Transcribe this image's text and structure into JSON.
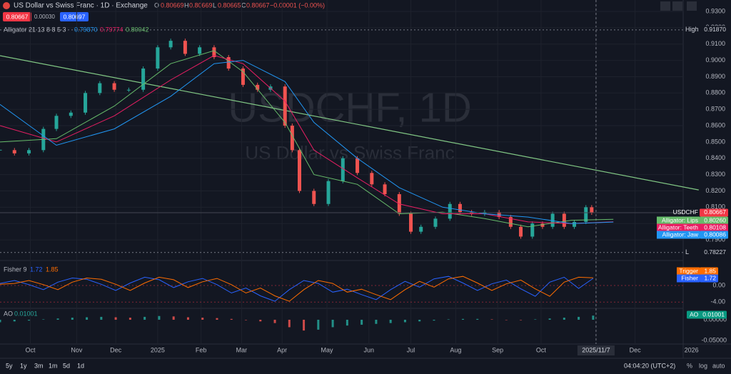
{
  "header": {
    "symbol": "US Dollar vs Swiss Franc · 1D · Exchange",
    "o_label": "O",
    "o": "0.80669",
    "h_label": "H",
    "h": "0.80669",
    "l_label": "L",
    "l": "0.80665",
    "c_label": "C",
    "c": "0.80667",
    "change": "−0.00001 (−0.00%)",
    "sell": "0.80667",
    "spread": "0.00030",
    "buy": "0.80697"
  },
  "watermark": {
    "title": "USDCHF, 1D",
    "subtitle": "US Dollar vs Swiss Franc"
  },
  "chart_data": [
    {
      "type": "candlestick",
      "name": "USDCHF",
      "price_label": "0.80667",
      "high_label": "High",
      "high": "0.91870",
      "low_label": "L",
      "low": "0.78227",
      "x": [
        0,
        10,
        20,
        30,
        39,
        49,
        59,
        69,
        79,
        89,
        99,
        109,
        118,
        128,
        138,
        148,
        158,
        168,
        178,
        187,
        197,
        202,
        207,
        217,
        227,
        237,
        247,
        257,
        266,
        276,
        284,
        291,
        301,
        311,
        318,
        326,
        335,
        345,
        353,
        360,
        368,
        375,
        382,
        390,
        397,
        405,
        409
      ],
      "values": [
        0.845,
        0.843,
        0.845,
        0.858,
        0.866,
        0.868,
        0.88,
        0.886,
        0.882,
        0.882,
        0.895,
        0.908,
        0.912,
        0.904,
        0.908,
        0.902,
        0.895,
        0.885,
        0.882,
        0.884,
        0.86,
        0.845,
        0.82,
        0.812,
        0.826,
        0.84,
        0.831,
        0.824,
        0.818,
        0.806,
        0.795,
        0.798,
        0.803,
        0.812,
        0.807,
        0.806,
        0.807,
        0.804,
        0.798,
        0.792,
        0.8,
        0.798,
        0.806,
        0.798,
        0.801,
        0.81,
        0.80667
      ],
      "up_color": "#26a69a",
      "down_color": "#ef5350",
      "indicator": "Alligator 21 13 8 8 5 3",
      "indicator_values": [
        "0.79870",
        "0.79774",
        "0.80042"
      ],
      "series": [
        {
          "name": "Alligator: Lips",
          "color": "#66bb6a",
          "label": "0.80260",
          "x": [
            0,
            39,
            79,
            118,
            148,
            168,
            197,
            217,
            247,
            276,
            306,
            335,
            365,
            395,
            424
          ],
          "values": [
            0.85,
            0.852,
            0.872,
            0.898,
            0.906,
            0.893,
            0.862,
            0.83,
            0.824,
            0.806,
            0.807,
            0.803,
            0.798,
            0.802,
            0.8026
          ]
        },
        {
          "name": "Alligator: Teeth",
          "color": "#e91e63",
          "label": "0.80108",
          "x": [
            0,
            39,
            79,
            118,
            148,
            168,
            197,
            217,
            247,
            276,
            306,
            335,
            365,
            395,
            424
          ],
          "values": [
            0.86,
            0.85,
            0.866,
            0.888,
            0.903,
            0.898,
            0.875,
            0.845,
            0.828,
            0.812,
            0.806,
            0.806,
            0.801,
            0.8,
            0.8011
          ]
        },
        {
          "name": "Alligator: Jaw",
          "color": "#2196f3",
          "label": "0.80086",
          "x": [
            0,
            39,
            79,
            118,
            148,
            168,
            197,
            217,
            247,
            276,
            306,
            335,
            365,
            395,
            424
          ],
          "values": [
            0.873,
            0.848,
            0.858,
            0.878,
            0.898,
            0.9,
            0.887,
            0.862,
            0.84,
            0.822,
            0.81,
            0.806,
            0.804,
            0.8,
            0.8009
          ]
        }
      ],
      "trendline": {
        "color": "#81c784",
        "x": [
          0,
          483
        ],
        "values": [
          0.9029,
          0.8206
        ]
      },
      "xlim": [
        0,
        490
      ],
      "ylim": [
        0.778,
        0.937
      ],
      "yticks": [
        {
          "value": 0.79,
          "label": "0.7900"
        },
        {
          "value": 0.8,
          "label": "0.8000"
        },
        {
          "value": 0.81,
          "label": "0.8100"
        },
        {
          "value": 0.82,
          "label": "0.8200"
        },
        {
          "value": 0.83,
          "label": "0.8300"
        },
        {
          "value": 0.84,
          "label": "0.8400"
        },
        {
          "value": 0.85,
          "label": "0.8500"
        },
        {
          "value": 0.86,
          "label": "0.8600"
        },
        {
          "value": 0.87,
          "label": "0.8700"
        },
        {
          "value": 0.88,
          "label": "0.8800"
        },
        {
          "value": 0.89,
          "label": "0.8900"
        },
        {
          "value": 0.9,
          "label": "0.9000"
        },
        {
          "value": 0.91,
          "label": "0.9100"
        },
        {
          "value": 0.92,
          "label": "0.9200"
        },
        {
          "value": 0.93,
          "label": "0.9300"
        }
      ]
    },
    {
      "type": "line",
      "title": "Fisher 9",
      "legend_values": [
        "1.72",
        "1.85"
      ],
      "x": [
        0,
        10,
        20,
        30,
        40,
        50,
        60,
        70,
        80,
        90,
        100,
        110,
        120,
        130,
        140,
        150,
        160,
        170,
        180,
        190,
        200,
        210,
        220,
        230,
        240,
        250,
        260,
        270,
        280,
        290,
        300,
        310,
        320,
        330,
        340,
        350,
        360,
        370,
        380,
        390,
        400,
        410
      ],
      "series": [
        {
          "name": "Fisher",
          "color": "#2962ff",
          "label": "1.72",
          "values": [
            0.5,
            1.2,
            0.2,
            -1.0,
            0.8,
            1.8,
            1.5,
            0.3,
            -1.2,
            0.6,
            2.0,
            1.4,
            -0.5,
            0.9,
            1.7,
            0.2,
            -1.8,
            -0.6,
            -2.5,
            -3.8,
            -1.0,
            1.2,
            0.5,
            -1.6,
            -0.9,
            -2.2,
            -3.4,
            -1.0,
            1.0,
            -0.4,
            1.6,
            2.2,
            0.6,
            -1.2,
            0.4,
            1.3,
            -0.8,
            -2.6,
            0.8,
            2.0,
            -0.7,
            1.72
          ]
        },
        {
          "name": "Trigger",
          "color": "#ff6d00",
          "label": "1.85",
          "values": [
            0.3,
            0.5,
            1.2,
            0.2,
            -1.0,
            0.8,
            1.8,
            1.5,
            0.3,
            -1.2,
            0.6,
            2.0,
            1.4,
            -0.5,
            0.9,
            1.7,
            0.2,
            -1.8,
            -0.6,
            -2.5,
            -3.8,
            -1.0,
            1.2,
            0.5,
            -1.6,
            -0.9,
            -2.2,
            -3.4,
            -1.0,
            1.0,
            -0.4,
            1.6,
            2.2,
            0.6,
            -1.2,
            0.4,
            1.3,
            -0.8,
            -2.6,
            0.8,
            2.0,
            1.85
          ]
        }
      ],
      "xlim": [
        0,
        490
      ],
      "ylim": [
        -5.5,
        5.5
      ],
      "yticks": [
        {
          "value": 0,
          "label": "0.00"
        },
        {
          "value": -4,
          "label": "-4.00"
        }
      ]
    },
    {
      "type": "bar",
      "title": "AO",
      "value_label": "0.01001",
      "up_color": "#26a69a",
      "down_color": "#ef5350",
      "x": [
        0,
        10,
        20,
        30,
        40,
        50,
        60,
        70,
        80,
        90,
        100,
        110,
        120,
        130,
        140,
        150,
        160,
        170,
        180,
        190,
        200,
        210,
        220,
        230,
        240,
        250,
        260,
        270,
        280,
        290,
        300,
        310,
        320,
        330,
        340,
        350,
        360,
        370,
        380,
        390,
        400,
        410
      ],
      "values": [
        -0.006,
        -0.004,
        -0.002,
        0.001,
        0.003,
        0.005,
        0.006,
        0.007,
        0.006,
        0.005,
        0.007,
        0.009,
        0.008,
        0.006,
        0.005,
        0.004,
        0.002,
        -0.001,
        -0.004,
        -0.008,
        -0.018,
        -0.026,
        -0.024,
        -0.018,
        -0.014,
        -0.012,
        -0.01,
        -0.008,
        -0.006,
        -0.004,
        -0.002,
        0.001,
        0.002,
        0.002,
        0.001,
        0,
        -0.001,
        0.001,
        0.003,
        0.005,
        0.007,
        0.01001
      ],
      "xlim": [
        0,
        490
      ],
      "ylim": [
        -0.0586,
        0.0241
      ],
      "yticks": [
        {
          "value": 0,
          "label": "0.00000"
        },
        {
          "value": -0.05,
          "label": "-0.05000"
        }
      ],
      "xticks": [
        {
          "value": 21,
          "label": "Oct"
        },
        {
          "value": 53,
          "label": "Nov"
        },
        {
          "value": 80,
          "label": "Dec"
        },
        {
          "value": 109,
          "label": "2025"
        },
        {
          "value": 139,
          "label": "Feb"
        },
        {
          "value": 167,
          "label": "Mar"
        },
        {
          "value": 195,
          "label": "Apr"
        },
        {
          "value": 226,
          "label": "May"
        },
        {
          "value": 255,
          "label": "Jun"
        },
        {
          "value": 284,
          "label": "Jul"
        },
        {
          "value": 315,
          "label": "Aug"
        },
        {
          "value": 344,
          "label": "Sep"
        },
        {
          "value": 374,
          "label": "Oct"
        },
        {
          "value": 412,
          "label": "2025/11/7"
        },
        {
          "value": 439,
          "label": "Dec"
        },
        {
          "value": 478,
          "label": "2026"
        }
      ]
    }
  ],
  "toolbar": {
    "ranges": [
      "5y",
      "1y",
      "3m",
      "1m",
      "5d",
      "1d"
    ],
    "clock": "04:04:20 (UTC+2)",
    "percent": "%",
    "log": "log",
    "auto": "auto"
  }
}
